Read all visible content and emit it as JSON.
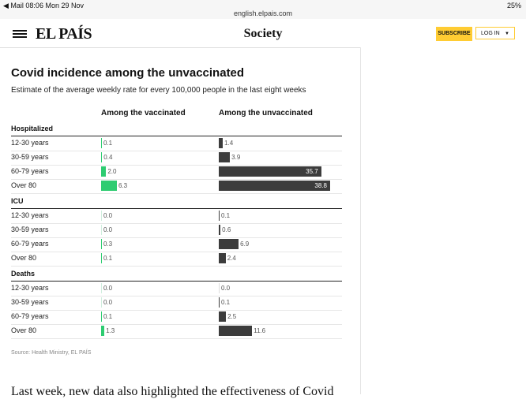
{
  "status_bar": {
    "left": "◀ Mail  08:06  Mon 29 Nov",
    "url": "english.elpais.com",
    "battery": "25%"
  },
  "header": {
    "logo": "EL PAÍS",
    "section": "Society",
    "subscribe": "SUBSCRIBE",
    "login": "LOG IN"
  },
  "article": {
    "title": "Covid incidence among the unvaccinated",
    "subtitle": "Estimate of the average weekly rate for every 100,000 people in the last eight weeks",
    "col_vaccinated": "Among the vaccinated",
    "col_unvaccinated": "Among the unvaccinated",
    "source": "Source: Health Ministry, EL PAÍS",
    "next_paragraph": "Last week, new data also highlighted the effectiveness of Covid"
  },
  "chart_data": {
    "type": "bar",
    "title": "Covid incidence among the unvaccinated",
    "subtitle": "Estimate of the average weekly rate for every 100,000 people in the last eight weeks",
    "series_names": [
      "Among the vaccinated",
      "Among the unvaccinated"
    ],
    "groups": [
      {
        "name": "Hospitalized",
        "categories": [
          "12-30 years",
          "30-59 years",
          "60-79 years",
          "Over 80"
        ],
        "vaccinated": [
          0.1,
          0.4,
          2.0,
          6.3
        ],
        "unvaccinated": [
          1.4,
          3.9,
          35.7,
          38.8
        ],
        "vac_labels": [
          "0.1",
          "0.4",
          "2.0",
          "6.3"
        ],
        "unvac_labels": [
          "1.4",
          "3.9",
          "35.7",
          "38.8"
        ]
      },
      {
        "name": "ICU",
        "categories": [
          "12-30 years",
          "30-59 years",
          "60-79 years",
          "Over 80"
        ],
        "vaccinated": [
          0.0,
          0.0,
          0.3,
          0.1
        ],
        "unvaccinated": [
          0.1,
          0.6,
          6.9,
          2.4
        ],
        "vac_labels": [
          "0.0",
          "0.0",
          "0.3",
          "0.1"
        ],
        "unvac_labels": [
          "0.1",
          "0.6",
          "6.9",
          "2.4"
        ]
      },
      {
        "name": "Deaths",
        "categories": [
          "12-30 years",
          "30-59 years",
          "60-79 years",
          "Over 80"
        ],
        "vaccinated": [
          0.0,
          0.0,
          0.1,
          1.3
        ],
        "unvaccinated": [
          0.0,
          0.1,
          2.5,
          11.6
        ],
        "vac_labels": [
          "0.0",
          "0.0",
          "0.1",
          "1.3"
        ],
        "unvac_labels": [
          "0.0",
          "0.1",
          "2.5",
          "11.6"
        ]
      }
    ],
    "source": "Source: Health Ministry, EL PAÍS",
    "colors": {
      "vaccinated": "#2ecc71",
      "unvaccinated": "#3c3c3c"
    }
  }
}
